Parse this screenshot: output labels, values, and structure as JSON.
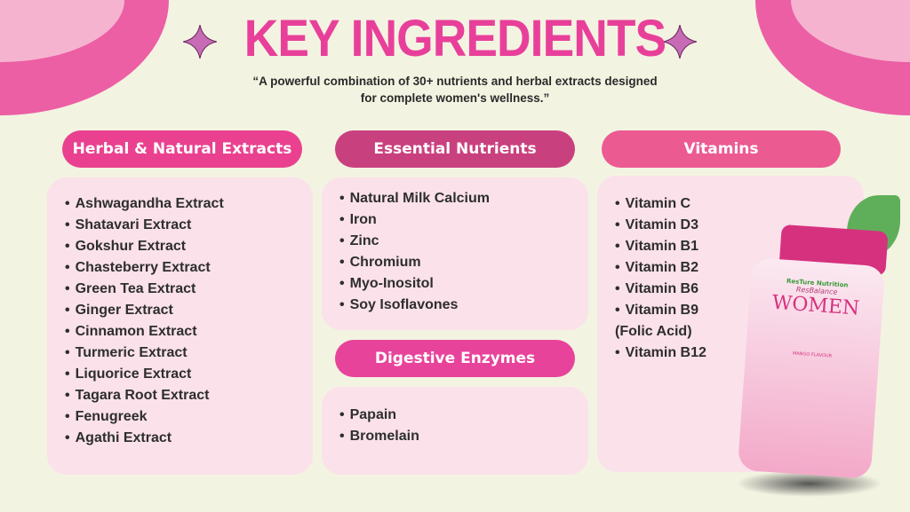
{
  "header": {
    "title": "KEY INGREDIENTS",
    "subtitle_line1": "“A powerful combination of 30+ nutrients and herbal extracts designed",
    "subtitle_line2": "for complete women's wellness.”"
  },
  "colors": {
    "background": "#f3f3e2",
    "accent": "#e8409a",
    "card": "#fae1ea",
    "sparkle": "#c86bb5"
  },
  "sections": {
    "herbal": {
      "label": "Herbal & Natural Extracts",
      "items": [
        "Ashwagandha Extract",
        "Shatavari Extract",
        "Gokshur Extract",
        "Chasteberry Extract",
        "Green Tea Extract",
        "Ginger Extract",
        "Cinnamon Extract",
        "Turmeric Extract",
        "Liquorice Extract",
        "Tagara Root Extract",
        "Fenugreek",
        "Agathi Extract"
      ]
    },
    "essential": {
      "label": "Essential Nutrients",
      "items": [
        "Natural Milk Calcium",
        "Iron",
        "Zinc",
        "Chromium",
        "Myo-Inositol",
        "Soy Isoflavones"
      ]
    },
    "digestive": {
      "label": "Digestive Enzymes",
      "items": [
        "Papain",
        "Bromelain"
      ]
    },
    "vitamins": {
      "label": "Vitamins",
      "items": [
        "Vitamin C",
        "Vitamin D3",
        "Vitamin B1",
        "Vitamin B2",
        "Vitamin B6",
        "Vitamin B9 (Folic Acid)",
        "Vitamin B12"
      ]
    }
  },
  "product": {
    "brand": "ResTure Nutrition",
    "line": "ResBalance",
    "name": "WOMEN",
    "flavour": "MANGO FLAVOUR"
  }
}
